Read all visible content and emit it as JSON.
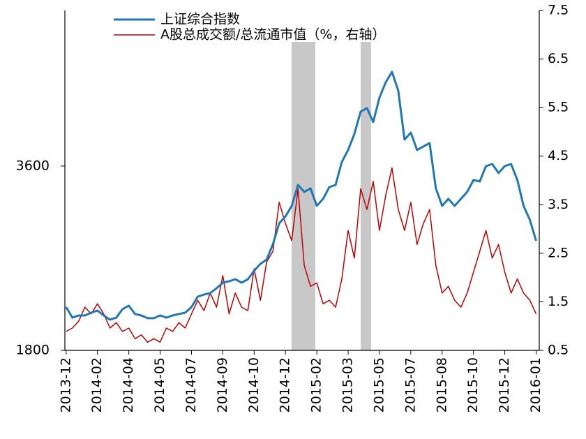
{
  "chart_data": {
    "type": "line",
    "x": [
      0,
      1,
      2,
      3,
      4,
      5,
      6,
      7,
      8,
      9,
      10,
      11,
      12,
      13,
      14,
      15,
      16,
      17,
      18,
      19,
      20,
      21,
      22,
      23,
      24,
      25,
      26,
      27,
      28,
      29,
      30,
      31,
      32,
      33,
      34,
      35,
      36,
      37,
      38,
      39,
      40,
      41,
      42,
      43,
      44,
      45,
      46,
      47,
      48,
      49,
      50,
      51,
      52,
      53,
      54,
      55,
      56,
      57,
      58,
      59,
      60,
      61,
      62,
      63,
      64,
      65,
      66,
      67,
      68,
      69,
      70,
      71,
      72,
      73,
      74,
      75
    ],
    "xlim": [
      -0.2,
      75.5
    ],
    "xticks": [
      {
        "value": 0,
        "label": "2013-12"
      },
      {
        "value": 5,
        "label": "2014-02"
      },
      {
        "value": 10,
        "label": "2014-04"
      },
      {
        "value": 15,
        "label": "2014-05"
      },
      {
        "value": 20,
        "label": "2014-07"
      },
      {
        "value": 25,
        "label": "2014-09"
      },
      {
        "value": 30,
        "label": "2014-10"
      },
      {
        "value": 35,
        "label": "2014-12"
      },
      {
        "value": 40,
        "label": "2015-02"
      },
      {
        "value": 45,
        "label": "2015-03"
      },
      {
        "value": 50,
        "label": "2015-05"
      },
      {
        "value": 55,
        "label": "2015-07"
      },
      {
        "value": 60,
        "label": "2015-08"
      },
      {
        "value": 65,
        "label": "2015-10"
      },
      {
        "value": 70,
        "label": "2015-12"
      },
      {
        "value": 75,
        "label": "2016-01"
      }
    ],
    "ylim": [
      1800,
      5120
    ],
    "yticks": [
      1800,
      3600
    ],
    "y2lim": [
      0.5,
      7.5
    ],
    "y2ticks": [
      0.5,
      1.5,
      2.5,
      3.5,
      4.5,
      5.5,
      6.5,
      7.5
    ],
    "highlight_ranges": [
      [
        35.97,
        39.76
      ],
      [
        47.0,
        48.66
      ]
    ],
    "highlight_color": "#c8c8c8",
    "legend": "upper left",
    "series": [
      {
        "name": "上证综合指数",
        "color": "#1f77b4",
        "values": [
          2223,
          2120,
          2141,
          2141,
          2168,
          2189,
          2141,
          2100,
          2120,
          2202,
          2236,
          2155,
          2141,
          2114,
          2114,
          2141,
          2120,
          2141,
          2155,
          2168,
          2223,
          2325,
          2345,
          2359,
          2407,
          2461,
          2475,
          2495,
          2461,
          2495,
          2577,
          2645,
          2686,
          2836,
          3041,
          3109,
          3211,
          3416,
          3348,
          3382,
          3211,
          3280,
          3395,
          3416,
          3641,
          3757,
          3914,
          4132,
          4166,
          4030,
          4268,
          4418,
          4520,
          4336,
          3859,
          3927,
          3757,
          3791,
          3825,
          3382,
          3211,
          3280,
          3211,
          3280,
          3348,
          3464,
          3450,
          3600,
          3620,
          3532,
          3600,
          3620,
          3464,
          3211,
          3075,
          2870
        ]
      },
      {
        "name": "A股总成交额/总流通市值（%，右轴）",
        "color": "#c00000",
        "axis": "y2",
        "values": [
          0.89,
          0.96,
          1.1,
          1.39,
          1.25,
          1.46,
          1.25,
          0.96,
          1.07,
          0.89,
          0.96,
          0.74,
          0.82,
          0.67,
          0.74,
          0.67,
          0.96,
          0.89,
          1.07,
          0.96,
          1.25,
          1.53,
          1.32,
          1.68,
          1.39,
          2.04,
          1.25,
          1.68,
          1.39,
          1.32,
          2.18,
          1.53,
          2.32,
          2.54,
          3.55,
          3.11,
          2.76,
          3.83,
          2.25,
          1.82,
          1.89,
          1.46,
          1.53,
          1.39,
          1.97,
          2.97,
          2.4,
          3.83,
          3.4,
          3.98,
          2.97,
          3.69,
          4.26,
          3.4,
          2.97,
          3.55,
          2.68,
          3.11,
          3.4,
          2.25,
          1.68,
          1.82,
          1.53,
          1.39,
          1.68,
          2.11,
          2.54,
          2.97,
          2.4,
          2.68,
          2.11,
          1.68,
          1.97,
          1.68,
          1.53,
          1.25
        ]
      }
    ]
  }
}
